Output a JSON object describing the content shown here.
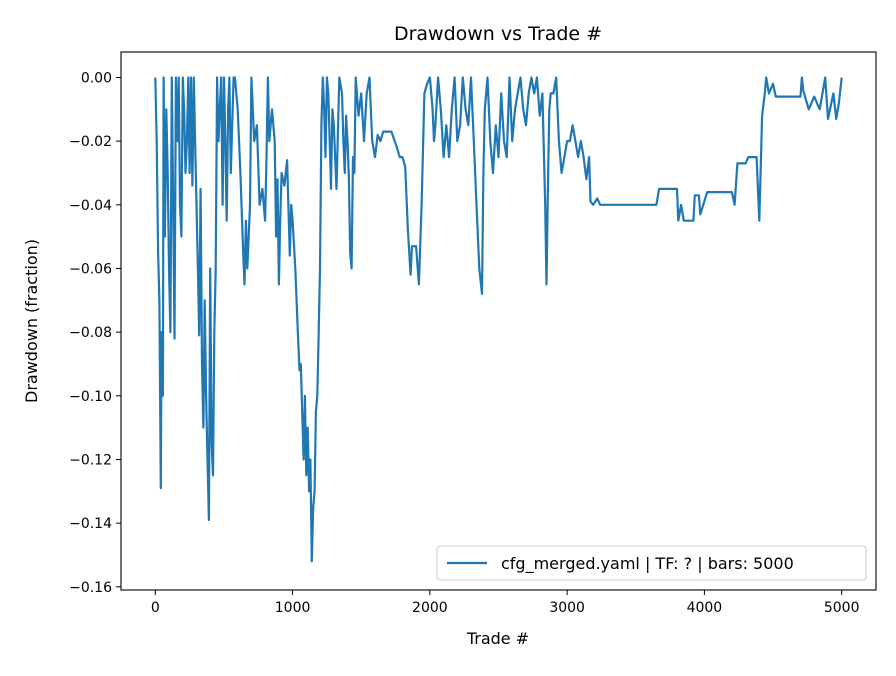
{
  "chart_data": {
    "type": "line",
    "title": "Drawdown vs Trade #",
    "xlabel": "Trade #",
    "ylabel": "Drawdown (fraction)",
    "xlim": [
      -250,
      5250
    ],
    "ylim": [
      -0.161,
      0.008
    ],
    "xticks": [
      0,
      1000,
      2000,
      3000,
      4000,
      5000
    ],
    "xtick_labels": [
      "0",
      "1000",
      "2000",
      "3000",
      "4000",
      "5000"
    ],
    "yticks": [
      0,
      -0.02,
      -0.04,
      -0.06,
      -0.08,
      -0.1,
      -0.12,
      -0.14,
      -0.16
    ],
    "ytick_labels": [
      "0.00",
      "−0.02",
      "−0.04",
      "−0.06",
      "−0.08",
      "−0.10",
      "−0.12",
      "−0.14",
      "−0.16"
    ],
    "grid": false,
    "legend_position": "bottom-right",
    "series": [
      {
        "name": "cfg_merged.yaml | TF: ? | bars: 5000",
        "color": "#1f77b4",
        "x": [
          0,
          10,
          20,
          30,
          40,
          45,
          55,
          60,
          70,
          80,
          90,
          100,
          110,
          120,
          130,
          140,
          150,
          160,
          170,
          180,
          190,
          200,
          210,
          220,
          230,
          240,
          250,
          260,
          270,
          280,
          290,
          300,
          310,
          320,
          330,
          340,
          350,
          360,
          370,
          380,
          390,
          400,
          410,
          420,
          430,
          440,
          450,
          460,
          470,
          480,
          490,
          500,
          510,
          520,
          530,
          540,
          550,
          560,
          570,
          580,
          600,
          620,
          640,
          650,
          660,
          670,
          680,
          690,
          700,
          720,
          740,
          760,
          780,
          800,
          810,
          820,
          830,
          850,
          870,
          880,
          890,
          900,
          910,
          920,
          940,
          960,
          980,
          990,
          1000,
          1020,
          1040,
          1050,
          1060,
          1080,
          1090,
          1100,
          1110,
          1120,
          1130,
          1140,
          1150,
          1160,
          1170,
          1180,
          1190,
          1200,
          1210,
          1220,
          1230,
          1240,
          1250,
          1260,
          1270,
          1280,
          1290,
          1300,
          1320,
          1340,
          1360,
          1370,
          1380,
          1390,
          1400,
          1410,
          1420,
          1430,
          1440,
          1450,
          1460,
          1480,
          1500,
          1520,
          1540,
          1560,
          1580,
          1600,
          1620,
          1640,
          1660,
          1700,
          1720,
          1760,
          1780,
          1800,
          1820,
          1840,
          1860,
          1870,
          1880,
          1900,
          1920,
          1940,
          1960,
          1980,
          2000,
          2020,
          2030,
          2040,
          2060,
          2080,
          2100,
          2120,
          2140,
          2160,
          2180,
          2200,
          2220,
          2240,
          2260,
          2280,
          2300,
          2320,
          2340,
          2360,
          2380,
          2390,
          2400,
          2420,
          2440,
          2460,
          2480,
          2500,
          2520,
          2540,
          2560,
          2580,
          2600,
          2620,
          2640,
          2660,
          2680,
          2700,
          2720,
          2740,
          2760,
          2780,
          2800,
          2820,
          2840,
          2850,
          2860,
          2870,
          2880,
          2900,
          2920,
          2940,
          2960,
          2980,
          3000,
          3020,
          3040,
          3060,
          3080,
          3100,
          3120,
          3140,
          3160,
          3170,
          3190,
          3220,
          3240,
          3500,
          3650,
          3670,
          3800,
          3810,
          3830,
          3850,
          3920,
          3930,
          3960,
          3970,
          4020,
          4100,
          4200,
          4220,
          4240,
          4300,
          4320,
          4380,
          4400,
          4420,
          4440,
          4450,
          4470,
          4500,
          4520,
          4700,
          4710,
          4720,
          4760,
          4800,
          4840,
          4880,
          4900,
          4940,
          4960,
          4980,
          5000
        ],
        "y": [
          0,
          -0.02,
          -0.055,
          -0.07,
          -0.129,
          -0.08,
          -0.1,
          0,
          -0.05,
          -0.01,
          -0.03,
          -0.06,
          -0.08,
          0,
          -0.04,
          -0.082,
          0,
          -0.02,
          0,
          -0.04,
          -0.05,
          0,
          -0.01,
          -0.03,
          -0.02,
          0,
          -0.03,
          0,
          -0.034,
          0,
          -0.02,
          -0.04,
          -0.06,
          -0.081,
          -0.035,
          -0.09,
          -0.11,
          -0.07,
          -0.1,
          -0.12,
          -0.139,
          -0.06,
          -0.115,
          -0.125,
          -0.08,
          -0.06,
          0,
          -0.02,
          -0.01,
          0,
          -0.04,
          0,
          -0.02,
          -0.045,
          -0.01,
          0,
          -0.03,
          -0.015,
          0,
          0,
          -0.01,
          -0.03,
          -0.055,
          -0.065,
          -0.045,
          -0.06,
          -0.05,
          -0.04,
          0,
          -0.02,
          -0.015,
          -0.04,
          -0.035,
          -0.045,
          -0.025,
          0,
          -0.02,
          -0.01,
          -0.02,
          -0.05,
          -0.032,
          -0.065,
          -0.045,
          -0.03,
          -0.034,
          -0.026,
          -0.056,
          -0.04,
          -0.045,
          -0.06,
          -0.082,
          -0.092,
          -0.09,
          -0.12,
          -0.1,
          -0.125,
          -0.11,
          -0.13,
          -0.12,
          -0.152,
          -0.135,
          -0.13,
          -0.105,
          -0.1,
          -0.08,
          -0.06,
          -0.015,
          0,
          -0.01,
          -0.025,
          0,
          -0.005,
          -0.02,
          -0.035,
          -0.01,
          -0.015,
          -0.035,
          0,
          -0.005,
          -0.02,
          -0.03,
          -0.012,
          -0.02,
          -0.032,
          -0.055,
          -0.06,
          -0.025,
          -0.03,
          0,
          -0.012,
          -0.005,
          -0.02,
          -0.005,
          0,
          -0.02,
          -0.025,
          -0.018,
          -0.02,
          -0.017,
          -0.017,
          -0.017,
          -0.022,
          -0.025,
          -0.025,
          -0.028,
          -0.048,
          -0.062,
          -0.053,
          -0.053,
          -0.053,
          -0.065,
          -0.04,
          -0.005,
          -0.002,
          0,
          -0.01,
          -0.02,
          -0.015,
          0,
          -0.01,
          -0.025,
          -0.015,
          -0.025,
          -0.01,
          0,
          -0.02,
          -0.015,
          0,
          -0.01,
          -0.015,
          0,
          -0.02,
          -0.04,
          -0.06,
          -0.068,
          -0.03,
          -0.01,
          0,
          -0.02,
          -0.03,
          -0.015,
          -0.025,
          -0.005,
          -0.02,
          -0.025,
          0,
          -0.02,
          -0.01,
          -0.005,
          0,
          -0.01,
          -0.015,
          -0.005,
          0,
          -0.005,
          0,
          -0.012,
          -0.005,
          -0.04,
          -0.065,
          -0.035,
          -0.01,
          -0.005,
          -0.005,
          0,
          -0.02,
          -0.03,
          -0.025,
          -0.02,
          -0.02,
          -0.015,
          -0.02,
          -0.025,
          -0.02,
          -0.025,
          -0.032,
          -0.025,
          -0.039,
          -0.04,
          -0.038,
          -0.04,
          -0.04,
          -0.04,
          -0.035,
          -0.035,
          -0.045,
          -0.04,
          -0.045,
          -0.045,
          -0.037,
          -0.037,
          -0.043,
          -0.036,
          -0.036,
          -0.036,
          -0.04,
          -0.027,
          -0.027,
          -0.025,
          -0.025,
          -0.045,
          -0.012,
          -0.005,
          0,
          -0.005,
          -0.002,
          -0.006,
          -0.006,
          0,
          -0.004,
          -0.01,
          -0.006,
          -0.01,
          0,
          -0.013,
          -0.005,
          -0.013,
          -0.008,
          0
        ]
      }
    ]
  }
}
